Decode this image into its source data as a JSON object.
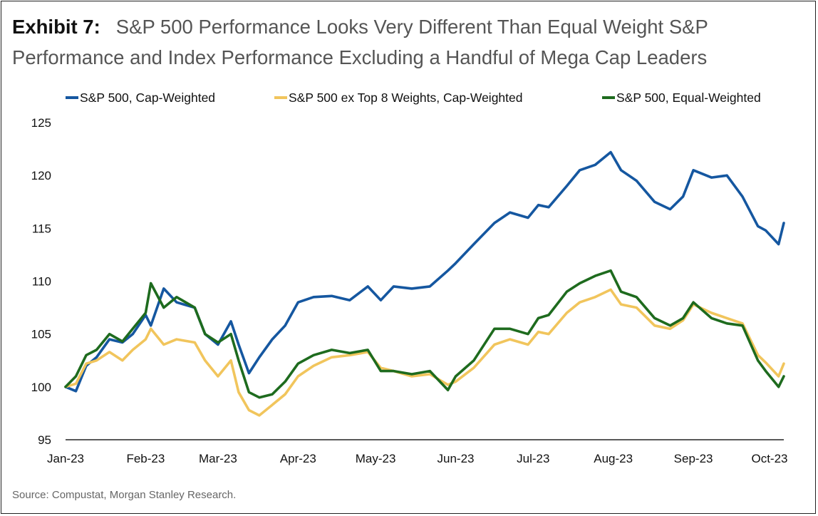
{
  "title": {
    "lead": "Exhibit 7:",
    "text": "S&P 500 Performance Looks Very Different Than Equal Weight S&P Performance and Index Performance Excluding a Handful of Mega Cap Leaders"
  },
  "source": "Source: Compustat, Morgan Stanley Research.",
  "colors": {
    "cap_weighted": "#1557a0",
    "ex_top8": "#f1c55c",
    "equal_weighted": "#1e6b1e",
    "axis": "#222222"
  },
  "chart_data": {
    "type": "line",
    "title": "S&P 500 Performance Looks Very Different Than Equal Weight S&P Performance and Index Performance Excluding a Handful of Mega Cap Leaders",
    "xlabel": "",
    "ylabel": "",
    "ylim": [
      95,
      125
    ],
    "yticks": [
      95,
      100,
      105,
      110,
      115,
      120,
      125
    ],
    "x_tick_labels": [
      "Jan-23",
      "Feb-23",
      "Mar-23",
      "Apr-23",
      "May-23",
      "Jun-23",
      "Jul-23",
      "Aug-23",
      "Sep-23",
      "Oct-23"
    ],
    "x_tick_dates": [
      "2023-01-01",
      "2023-02-01",
      "2023-03-01",
      "2023-04-01",
      "2023-05-01",
      "2023-06-01",
      "2023-07-01",
      "2023-08-01",
      "2023-09-01",
      "2023-10-01"
    ],
    "grid": false,
    "legend": "top",
    "series": [
      {
        "name": "S&P 500, Cap-Weighted",
        "points": [
          [
            "2023-01-01",
            100.0
          ],
          [
            "2023-01-05",
            99.6
          ],
          [
            "2023-01-09",
            102.0
          ],
          [
            "2023-01-13",
            102.8
          ],
          [
            "2023-01-18",
            104.5
          ],
          [
            "2023-01-23",
            104.2
          ],
          [
            "2023-01-27",
            105.0
          ],
          [
            "2023-02-01",
            106.8
          ],
          [
            "2023-02-03",
            105.8
          ],
          [
            "2023-02-08",
            109.3
          ],
          [
            "2023-02-13",
            108.0
          ],
          [
            "2023-02-20",
            107.5
          ],
          [
            "2023-02-24",
            105.0
          ],
          [
            "2023-03-01",
            104.0
          ],
          [
            "2023-03-06",
            106.2
          ],
          [
            "2023-03-09",
            104.0
          ],
          [
            "2023-03-13",
            101.3
          ],
          [
            "2023-03-17",
            102.8
          ],
          [
            "2023-03-22",
            104.5
          ],
          [
            "2023-03-27",
            105.8
          ],
          [
            "2023-04-01",
            108.0
          ],
          [
            "2023-04-07",
            108.5
          ],
          [
            "2023-04-14",
            108.6
          ],
          [
            "2023-04-21",
            108.2
          ],
          [
            "2023-04-28",
            109.5
          ],
          [
            "2023-05-03",
            108.2
          ],
          [
            "2023-05-08",
            109.5
          ],
          [
            "2023-05-15",
            109.3
          ],
          [
            "2023-05-22",
            109.5
          ],
          [
            "2023-05-29",
            111.0
          ],
          [
            "2023-06-01",
            111.7
          ],
          [
            "2023-06-08",
            113.5
          ],
          [
            "2023-06-16",
            115.5
          ],
          [
            "2023-06-22",
            116.5
          ],
          [
            "2023-06-29",
            116.0
          ],
          [
            "2023-07-03",
            117.2
          ],
          [
            "2023-07-07",
            117.0
          ],
          [
            "2023-07-14",
            119.0
          ],
          [
            "2023-07-19",
            120.5
          ],
          [
            "2023-07-25",
            121.0
          ],
          [
            "2023-07-31",
            122.2
          ],
          [
            "2023-08-04",
            120.5
          ],
          [
            "2023-08-10",
            119.5
          ],
          [
            "2023-08-17",
            117.5
          ],
          [
            "2023-08-23",
            116.8
          ],
          [
            "2023-08-28",
            118.0
          ],
          [
            "2023-09-01",
            120.5
          ],
          [
            "2023-09-08",
            119.8
          ],
          [
            "2023-09-14",
            120.0
          ],
          [
            "2023-09-20",
            118.0
          ],
          [
            "2023-09-26",
            115.2
          ],
          [
            "2023-09-29",
            114.8
          ],
          [
            "2023-10-04",
            113.5
          ],
          [
            "2023-10-06",
            115.5
          ]
        ]
      },
      {
        "name": "S&P 500 ex Top 8 Weights, Cap-Weighted",
        "points": [
          [
            "2023-01-01",
            100.0
          ],
          [
            "2023-01-05",
            100.3
          ],
          [
            "2023-01-09",
            102.2
          ],
          [
            "2023-01-13",
            102.5
          ],
          [
            "2023-01-18",
            103.3
          ],
          [
            "2023-01-23",
            102.5
          ],
          [
            "2023-01-27",
            103.5
          ],
          [
            "2023-02-01",
            104.5
          ],
          [
            "2023-02-03",
            105.5
          ],
          [
            "2023-02-08",
            104.0
          ],
          [
            "2023-02-13",
            104.5
          ],
          [
            "2023-02-20",
            104.2
          ],
          [
            "2023-02-24",
            102.5
          ],
          [
            "2023-03-01",
            101.0
          ],
          [
            "2023-03-06",
            102.5
          ],
          [
            "2023-03-09",
            99.5
          ],
          [
            "2023-03-13",
            97.8
          ],
          [
            "2023-03-17",
            97.3
          ],
          [
            "2023-03-22",
            98.3
          ],
          [
            "2023-03-27",
            99.3
          ],
          [
            "2023-04-01",
            101.0
          ],
          [
            "2023-04-07",
            102.0
          ],
          [
            "2023-04-14",
            102.8
          ],
          [
            "2023-04-21",
            103.0
          ],
          [
            "2023-04-28",
            103.3
          ],
          [
            "2023-05-03",
            101.8
          ],
          [
            "2023-05-08",
            101.5
          ],
          [
            "2023-05-15",
            101.0
          ],
          [
            "2023-05-22",
            101.2
          ],
          [
            "2023-05-29",
            100.2
          ],
          [
            "2023-06-01",
            100.5
          ],
          [
            "2023-06-08",
            101.8
          ],
          [
            "2023-06-16",
            104.0
          ],
          [
            "2023-06-22",
            104.5
          ],
          [
            "2023-06-29",
            104.0
          ],
          [
            "2023-07-03",
            105.2
          ],
          [
            "2023-07-07",
            105.0
          ],
          [
            "2023-07-14",
            107.0
          ],
          [
            "2023-07-19",
            108.0
          ],
          [
            "2023-07-25",
            108.5
          ],
          [
            "2023-07-31",
            109.2
          ],
          [
            "2023-08-04",
            107.8
          ],
          [
            "2023-08-10",
            107.5
          ],
          [
            "2023-08-17",
            105.8
          ],
          [
            "2023-08-23",
            105.5
          ],
          [
            "2023-08-28",
            106.3
          ],
          [
            "2023-09-01",
            107.8
          ],
          [
            "2023-09-08",
            107.0
          ],
          [
            "2023-09-14",
            106.5
          ],
          [
            "2023-09-20",
            106.0
          ],
          [
            "2023-09-26",
            103.0
          ],
          [
            "2023-09-29",
            102.3
          ],
          [
            "2023-10-04",
            101.0
          ],
          [
            "2023-10-06",
            102.2
          ]
        ]
      },
      {
        "name": "S&P 500, Equal-Weighted",
        "points": [
          [
            "2023-01-01",
            100.0
          ],
          [
            "2023-01-05",
            101.0
          ],
          [
            "2023-01-09",
            103.0
          ],
          [
            "2023-01-13",
            103.5
          ],
          [
            "2023-01-18",
            105.0
          ],
          [
            "2023-01-23",
            104.3
          ],
          [
            "2023-01-27",
            105.5
          ],
          [
            "2023-02-01",
            107.0
          ],
          [
            "2023-02-03",
            109.8
          ],
          [
            "2023-02-08",
            107.5
          ],
          [
            "2023-02-13",
            108.5
          ],
          [
            "2023-02-20",
            107.5
          ],
          [
            "2023-02-24",
            105.0
          ],
          [
            "2023-03-01",
            104.2
          ],
          [
            "2023-03-06",
            105.0
          ],
          [
            "2023-03-09",
            102.5
          ],
          [
            "2023-03-13",
            99.5
          ],
          [
            "2023-03-17",
            99.0
          ],
          [
            "2023-03-22",
            99.3
          ],
          [
            "2023-03-27",
            100.5
          ],
          [
            "2023-04-01",
            102.2
          ],
          [
            "2023-04-07",
            103.0
          ],
          [
            "2023-04-14",
            103.5
          ],
          [
            "2023-04-21",
            103.2
          ],
          [
            "2023-04-28",
            103.5
          ],
          [
            "2023-05-03",
            101.5
          ],
          [
            "2023-05-08",
            101.5
          ],
          [
            "2023-05-15",
            101.2
          ],
          [
            "2023-05-22",
            101.5
          ],
          [
            "2023-05-29",
            99.7
          ],
          [
            "2023-06-01",
            101.0
          ],
          [
            "2023-06-08",
            102.5
          ],
          [
            "2023-06-16",
            105.5
          ],
          [
            "2023-06-22",
            105.5
          ],
          [
            "2023-06-29",
            105.0
          ],
          [
            "2023-07-03",
            106.5
          ],
          [
            "2023-07-07",
            106.8
          ],
          [
            "2023-07-14",
            109.0
          ],
          [
            "2023-07-19",
            109.8
          ],
          [
            "2023-07-25",
            110.5
          ],
          [
            "2023-07-31",
            111.0
          ],
          [
            "2023-08-04",
            109.0
          ],
          [
            "2023-08-10",
            108.5
          ],
          [
            "2023-08-17",
            106.5
          ],
          [
            "2023-08-23",
            105.8
          ],
          [
            "2023-08-28",
            106.5
          ],
          [
            "2023-09-01",
            108.0
          ],
          [
            "2023-09-08",
            106.5
          ],
          [
            "2023-09-14",
            106.0
          ],
          [
            "2023-09-20",
            105.8
          ],
          [
            "2023-09-26",
            102.5
          ],
          [
            "2023-09-29",
            101.5
          ],
          [
            "2023-10-04",
            100.0
          ],
          [
            "2023-10-06",
            101.0
          ]
        ]
      }
    ]
  }
}
